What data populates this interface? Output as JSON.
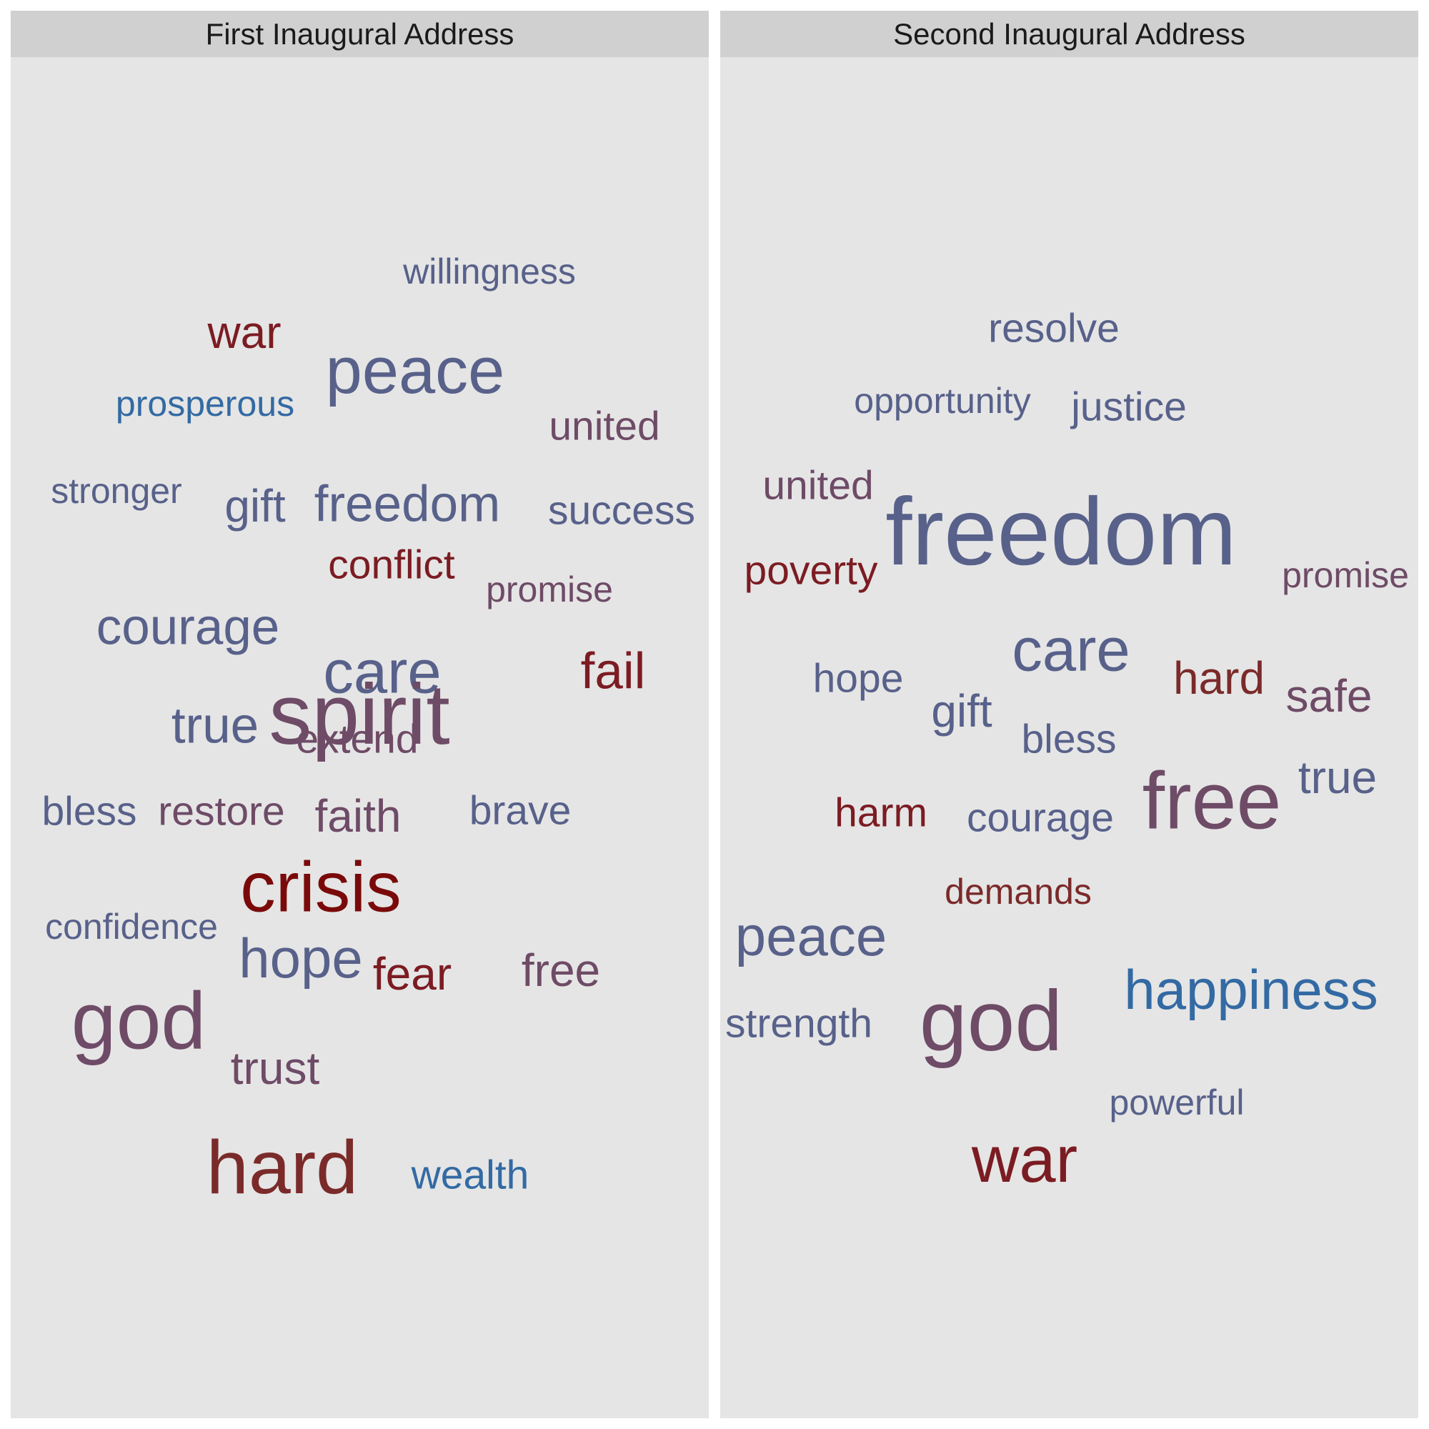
{
  "chart_data": {
    "type": "wordcloud",
    "panels": [
      {
        "title": "First Inaugural Address",
        "words": [
          {
            "text": "willingness",
            "size": 2,
            "color": "#58618a"
          },
          {
            "text": "war",
            "size": 4,
            "color": "#7b1c22"
          },
          {
            "text": "peace",
            "size": 8,
            "color": "#58618a"
          },
          {
            "text": "prosperous",
            "size": 2,
            "color": "#336aa3"
          },
          {
            "text": "united",
            "size": 3,
            "color": "#6e4b66"
          },
          {
            "text": "stronger",
            "size": 2,
            "color": "#58618a"
          },
          {
            "text": "gift",
            "size": 4,
            "color": "#58618a"
          },
          {
            "text": "freedom",
            "size": 5,
            "color": "#58618a"
          },
          {
            "text": "success",
            "size": 3,
            "color": "#58618a"
          },
          {
            "text": "conflict",
            "size": 3,
            "color": "#7b1c22"
          },
          {
            "text": "promise",
            "size": 2,
            "color": "#6e4b66"
          },
          {
            "text": "courage",
            "size": 5,
            "color": "#58618a"
          },
          {
            "text": "care",
            "size": 7,
            "color": "#58618a"
          },
          {
            "text": "fail",
            "size": 5,
            "color": "#7b1c22"
          },
          {
            "text": "true",
            "size": 5,
            "color": "#58618a"
          },
          {
            "text": "extend",
            "size": 3,
            "color": "#6e4b66"
          },
          {
            "text": "bless",
            "size": 3,
            "color": "#58618a"
          },
          {
            "text": "restore",
            "size": 3,
            "color": "#6e4b66"
          },
          {
            "text": "faith",
            "size": 4,
            "color": "#6e4b66"
          },
          {
            "text": "brave",
            "size": 3,
            "color": "#58618a"
          },
          {
            "text": "crisis",
            "size": 9,
            "color": "#7a0a0a"
          },
          {
            "text": "confidence",
            "size": 2,
            "color": "#58618a"
          },
          {
            "text": "hope",
            "size": 6,
            "color": "#58618a"
          },
          {
            "text": "fear",
            "size": 4,
            "color": "#7b1c22"
          },
          {
            "text": "free",
            "size": 4,
            "color": "#6e4b66"
          },
          {
            "text": "god",
            "size": 11,
            "color": "#6e4b66"
          },
          {
            "text": "trust",
            "size": 4,
            "color": "#6e4b66"
          },
          {
            "text": "hard",
            "size": 10,
            "color": "#7b2a2a"
          },
          {
            "text": "wealth",
            "size": 3,
            "color": "#336aa3"
          },
          {
            "text": "spirit",
            "size": 12,
            "color": "#6e4b66"
          }
        ]
      },
      {
        "title": "Second Inaugural Address",
        "words": [
          {
            "text": "resolve",
            "size": 3,
            "color": "#58618a"
          },
          {
            "text": "opportunity",
            "size": 2,
            "color": "#58618a"
          },
          {
            "text": "justice",
            "size": 3,
            "color": "#58618a"
          },
          {
            "text": "united",
            "size": 3,
            "color": "#6e4b66"
          },
          {
            "text": "freedom",
            "size": 14,
            "color": "#58618a"
          },
          {
            "text": "poverty",
            "size": 3,
            "color": "#7b1c22"
          },
          {
            "text": "promise",
            "size": 2,
            "color": "#6e4b66"
          },
          {
            "text": "hope",
            "size": 3,
            "color": "#58618a"
          },
          {
            "text": "care",
            "size": 7,
            "color": "#58618a"
          },
          {
            "text": "hard",
            "size": 4,
            "color": "#7b2a2a"
          },
          {
            "text": "safe",
            "size": 4,
            "color": "#6e4b66"
          },
          {
            "text": "gift",
            "size": 4,
            "color": "#58618a"
          },
          {
            "text": "bless",
            "size": 3,
            "color": "#58618a"
          },
          {
            "text": "true",
            "size": 4,
            "color": "#58618a"
          },
          {
            "text": "harm",
            "size": 3,
            "color": "#7b1c22"
          },
          {
            "text": "courage",
            "size": 3,
            "color": "#58618a"
          },
          {
            "text": "free",
            "size": 11,
            "color": "#6e4b66"
          },
          {
            "text": "demands",
            "size": 2,
            "color": "#7b2a2a"
          },
          {
            "text": "peace",
            "size": 6,
            "color": "#58618a"
          },
          {
            "text": "happiness",
            "size": 6,
            "color": "#336aa3"
          },
          {
            "text": "strength",
            "size": 3,
            "color": "#58618a"
          },
          {
            "text": "god",
            "size": 12,
            "color": "#6e4b66"
          },
          {
            "text": "powerful",
            "size": 2,
            "color": "#58618a"
          },
          {
            "text": "war",
            "size": 8,
            "color": "#7b1c22"
          }
        ]
      }
    ]
  }
}
